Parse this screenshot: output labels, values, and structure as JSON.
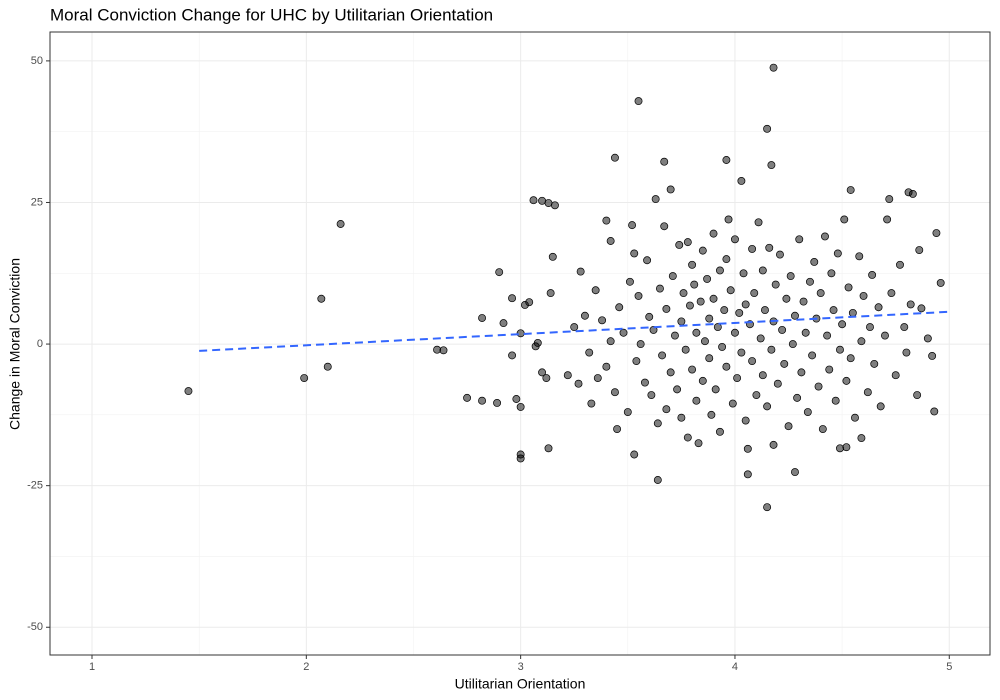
{
  "chart_data": {
    "type": "scatter",
    "title": "Moral Conviction Change for UHC by Utilitarian Orientation",
    "x_label": "Utilitarian Orientation",
    "y_label": "Change in Moral Conviction",
    "xlim": [
      0.804,
      5.19
    ],
    "ylim": [
      -54.9,
      55.1
    ],
    "xticks": [
      1,
      2,
      3,
      4,
      5
    ],
    "yticks": [
      -50,
      -25,
      0,
      25,
      50
    ],
    "grid": true,
    "color": "#000000",
    "x": [
      1.45,
      1.99,
      2.07,
      2.1,
      2.16,
      2.61,
      2.64,
      2.75,
      2.82,
      2.82,
      2.89,
      2.9,
      2.92,
      2.96,
      2.96,
      2.98,
      3.0,
      3.0,
      3.0,
      3.0,
      3.02,
      3.04,
      3.06,
      3.1,
      3.13,
      3.16,
      3.13,
      3.15,
      3.08,
      3.1,
      3.12,
      3.07,
      3.14,
      3.55,
      4.18,
      4.15,
      4.17,
      3.44,
      3.67,
      3.96,
      4.03,
      3.64,
      4.15,
      4.06,
      4.28,
      4.72,
      4.81,
      4.83,
      4.54,
      4.94,
      4.93,
      4.96,
      4.59,
      4.49,
      4.52,
      4.86,
      3.22,
      3.25,
      3.27,
      3.28,
      3.3,
      3.32,
      3.33,
      3.35,
      3.36,
      3.38,
      3.4,
      3.4,
      3.42,
      3.42,
      3.44,
      3.45,
      3.46,
      3.48,
      3.5,
      3.51,
      3.52,
      3.53,
      3.53,
      3.54,
      3.55,
      3.56,
      3.58,
      3.59,
      3.6,
      3.61,
      3.62,
      3.63,
      3.64,
      3.65,
      3.66,
      3.67,
      3.68,
      3.68,
      3.7,
      3.7,
      3.71,
      3.72,
      3.73,
      3.74,
      3.75,
      3.75,
      3.76,
      3.77,
      3.78,
      3.78,
      3.79,
      3.8,
      3.8,
      3.81,
      3.82,
      3.82,
      3.83,
      3.84,
      3.85,
      3.85,
      3.86,
      3.87,
      3.88,
      3.88,
      3.89,
      3.9,
      3.9,
      3.91,
      3.92,
      3.93,
      3.93,
      3.94,
      3.95,
      3.96,
      3.96,
      3.97,
      3.98,
      3.99,
      4.0,
      4.0,
      4.01,
      4.02,
      4.03,
      4.04,
      4.05,
      4.05,
      4.06,
      4.07,
      4.08,
      4.08,
      4.09,
      4.1,
      4.11,
      4.12,
      4.13,
      4.13,
      4.14,
      4.15,
      4.16,
      4.17,
      4.18,
      4.18,
      4.19,
      4.2,
      4.21,
      4.22,
      4.23,
      4.24,
      4.25,
      4.26,
      4.27,
      4.28,
      4.29,
      4.3,
      4.31,
      4.32,
      4.33,
      4.34,
      4.35,
      4.36,
      4.37,
      4.38,
      4.39,
      4.4,
      4.41,
      4.42,
      4.43,
      4.44,
      4.45,
      4.46,
      4.47,
      4.48,
      4.49,
      4.5,
      4.51,
      4.52,
      4.53,
      4.54,
      4.55,
      4.56,
      4.58,
      4.59,
      4.6,
      4.62,
      4.63,
      4.64,
      4.65,
      4.67,
      4.68,
      4.7,
      4.71,
      4.73,
      4.75,
      4.77,
      4.79,
      4.8,
      4.82,
      4.85,
      4.87,
      4.9,
      4.92
    ],
    "y": [
      -8.3,
      -6,
      8,
      -4,
      21.2,
      -1,
      -1.1,
      -9.5,
      -10,
      4.6,
      -10.4,
      12.7,
      3.7,
      8.1,
      -2,
      -9.7,
      -19.5,
      -20.2,
      -11.1,
      1.9,
      6.9,
      7.4,
      25.4,
      25.3,
      24.9,
      24.5,
      -18.4,
      15.4,
      0.2,
      -5,
      -6,
      -0.4,
      9,
      42.9,
      48.8,
      38,
      31.6,
      32.9,
      32.2,
      32.5,
      28.8,
      -24,
      -28.8,
      -23,
      -22.6,
      25.6,
      26.8,
      26.5,
      27.2,
      19.6,
      -11.9,
      10.8,
      -16.6,
      -18.4,
      -18.2,
      16.6,
      -5.5,
      3,
      -7,
      12.8,
      5,
      -1.5,
      -10.5,
      9.5,
      -6,
      4.2,
      21.8,
      -4,
      18.2,
      0.5,
      -8.5,
      -15,
      6.5,
      2,
      -12,
      11,
      21,
      16,
      -19.5,
      -3,
      8.5,
      0,
      -6.8,
      14.8,
      4.8,
      -9,
      2.5,
      25.6,
      -14,
      9.8,
      -2,
      20.8,
      6.2,
      -11.5,
      27.3,
      -5,
      12,
      1.5,
      -8,
      17.5,
      4,
      -13,
      9,
      -1,
      18,
      -16.5,
      6.8,
      -4.5,
      14,
      10.5,
      2,
      -10,
      -17.5,
      7.5,
      16.5,
      -6.5,
      0.5,
      11.5,
      -2.5,
      4.5,
      -12.5,
      19.5,
      8,
      -8,
      3,
      13,
      -15.5,
      -0.5,
      6,
      15,
      -4,
      22,
      9.5,
      -10.5,
      2,
      18.5,
      -6,
      5.5,
      -1.5,
      12.5,
      -13.5,
      7,
      -18.5,
      3.5,
      16.8,
      -3,
      9,
      -9,
      21.5,
      1,
      -5.5,
      13,
      6,
      -11,
      17,
      -1,
      4,
      -17.8,
      10.5,
      -7,
      15.8,
      2.5,
      -3.5,
      8,
      -14.5,
      12,
      0,
      5,
      -9.5,
      18.5,
      -5,
      7.5,
      2,
      -12,
      11,
      -2,
      14.5,
      4.5,
      -7.5,
      9,
      -15,
      19,
      1.5,
      -4.5,
      12.5,
      6,
      -10,
      16,
      -1,
      3.5,
      22,
      -6.5,
      10,
      -2.5,
      5.5,
      -13,
      15.5,
      0.5,
      8.5,
      -8.5,
      3,
      12.2,
      -3.5,
      6.5,
      -11,
      1.5,
      22,
      9,
      -5.5,
      14,
      3,
      -1.5,
      7,
      -9,
      6.3,
      1,
      -2.1
    ],
    "trend_line": {
      "x": [
        1.5,
        5
      ],
      "y": [
        -1.2,
        5.7
      ],
      "color": "#3366ff"
    }
  }
}
